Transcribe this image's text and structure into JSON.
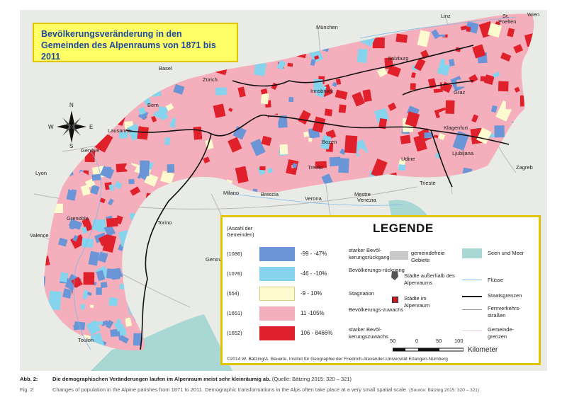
{
  "title": {
    "line1": "Bevölkerungsveränderung in den",
    "line2": "Gemeinden des Alpenraums von 1871 bis 2011"
  },
  "cities": [
    {
      "name": "Wien",
      "id": "wien"
    },
    {
      "name": "St.",
      "id": "stpoelten1"
    },
    {
      "name": "Poelten",
      "id": "stpoelten2"
    },
    {
      "name": "Linz",
      "id": "linz"
    },
    {
      "name": "München",
      "id": "muenchen"
    },
    {
      "name": "Salzburg",
      "id": "salzburg"
    },
    {
      "name": "Basel",
      "id": "basel"
    },
    {
      "name": "Zürich",
      "id": "zuerich"
    },
    {
      "name": "Innsbruck",
      "id": "innsbruck"
    },
    {
      "name": "Graz",
      "id": "graz"
    },
    {
      "name": "Bern",
      "id": "bern"
    },
    {
      "name": "Klagenfurt",
      "id": "klagenfurt"
    },
    {
      "name": "Lausanne",
      "id": "lausanne"
    },
    {
      "name": "Genève",
      "id": "geneve"
    },
    {
      "name": "Bozen",
      "id": "bozen"
    },
    {
      "name": "Ljubljana",
      "id": "ljubljana"
    },
    {
      "name": "Lyon",
      "id": "lyon"
    },
    {
      "name": "Trento",
      "id": "trento"
    },
    {
      "name": "Udine",
      "id": "udine"
    },
    {
      "name": "Zagreb",
      "id": "zagreb"
    },
    {
      "name": "Trieste",
      "id": "trieste"
    },
    {
      "name": "Milano",
      "id": "milano"
    },
    {
      "name": "Brescia",
      "id": "brescia"
    },
    {
      "name": "Verona",
      "id": "verona"
    },
    {
      "name": "Mestre",
      "id": "mestre"
    },
    {
      "name": "Venezia",
      "id": "venezia"
    },
    {
      "name": "Grenoble",
      "id": "grenoble"
    },
    {
      "name": "Torino",
      "id": "torino"
    },
    {
      "name": "Valence",
      "id": "valence"
    },
    {
      "name": "Genova",
      "id": "genova"
    },
    {
      "name": "Toulon",
      "id": "toulon"
    }
  ],
  "compass": {
    "n": "N",
    "s": "S",
    "w": "W",
    "e": "E"
  },
  "legend": {
    "title": "LEGENDE",
    "count_header": "(Anzahl der Gemeinden)",
    "classes": [
      {
        "count": "(1086)",
        "range": "-99 - -47%",
        "desc": "starker Bevöl-kerungsrückgang",
        "color": "#6a95d6"
      },
      {
        "count": "(1076)",
        "range": "-46 - -10%",
        "desc": "Bevölkerungs-rückgang",
        "color": "#86d3ee"
      },
      {
        "count": "(554)",
        "range": "-9 - 10%",
        "desc": "Stagnation",
        "color": "#fdfad0"
      },
      {
        "count": "(1651)",
        "range": "11 -105%",
        "desc": "Bevölkerungs-zuwachs",
        "color": "#f5aebb"
      },
      {
        "count": "(1652)",
        "range": "106 - 8466%",
        "desc": "starker Bevöl-kerungszuwachs",
        "color": "#e0202a"
      }
    ],
    "gemeindefreie": "gemeindefreie Gebiete",
    "staedte_ausserhalb": "Städte außerhalb des Alpenraums",
    "staedte_im": "Städte im Alpenraum",
    "seen": "Seen und Meer",
    "fluesse": "Flüsse",
    "staatsgrenzen": "Staatsgrenzen",
    "fernverkehr": "Fernverkehrs-straßen",
    "gemeindegrenzen": "Gemeinde-grenzen",
    "scale_ticks": [
      "50",
      "0",
      "50",
      "100"
    ],
    "scale_unit": "Kilometer",
    "copyright": "©2014 W. Bätzing/A. Beuerle, Institut für Geographie der Friedrich-Alexander-Universität Erlangen-Nürnberg",
    "colors": {
      "gemeindefrei": "#c8c8c8",
      "seen": "#a9d8d4",
      "grenze": "#111111",
      "strasse": "#9a9a9a"
    }
  },
  "caption": {
    "de_label": "Abb. 2:",
    "de_text": "Die demographischen Veränderungen laufen im Alpenraum meist sehr kleinräumig ab.",
    "de_source": "(Quelle: Bätzing 2015: 320 – 321)",
    "en_label": "Fig. 2:",
    "en_text": "Changes of population in the Alpine parishes from 1871 to 2011. Demographic transformations in the Alps often take place at a very small spatial scale.",
    "en_source": "(Source: Bätzing 2015: 320 – 321)"
  }
}
